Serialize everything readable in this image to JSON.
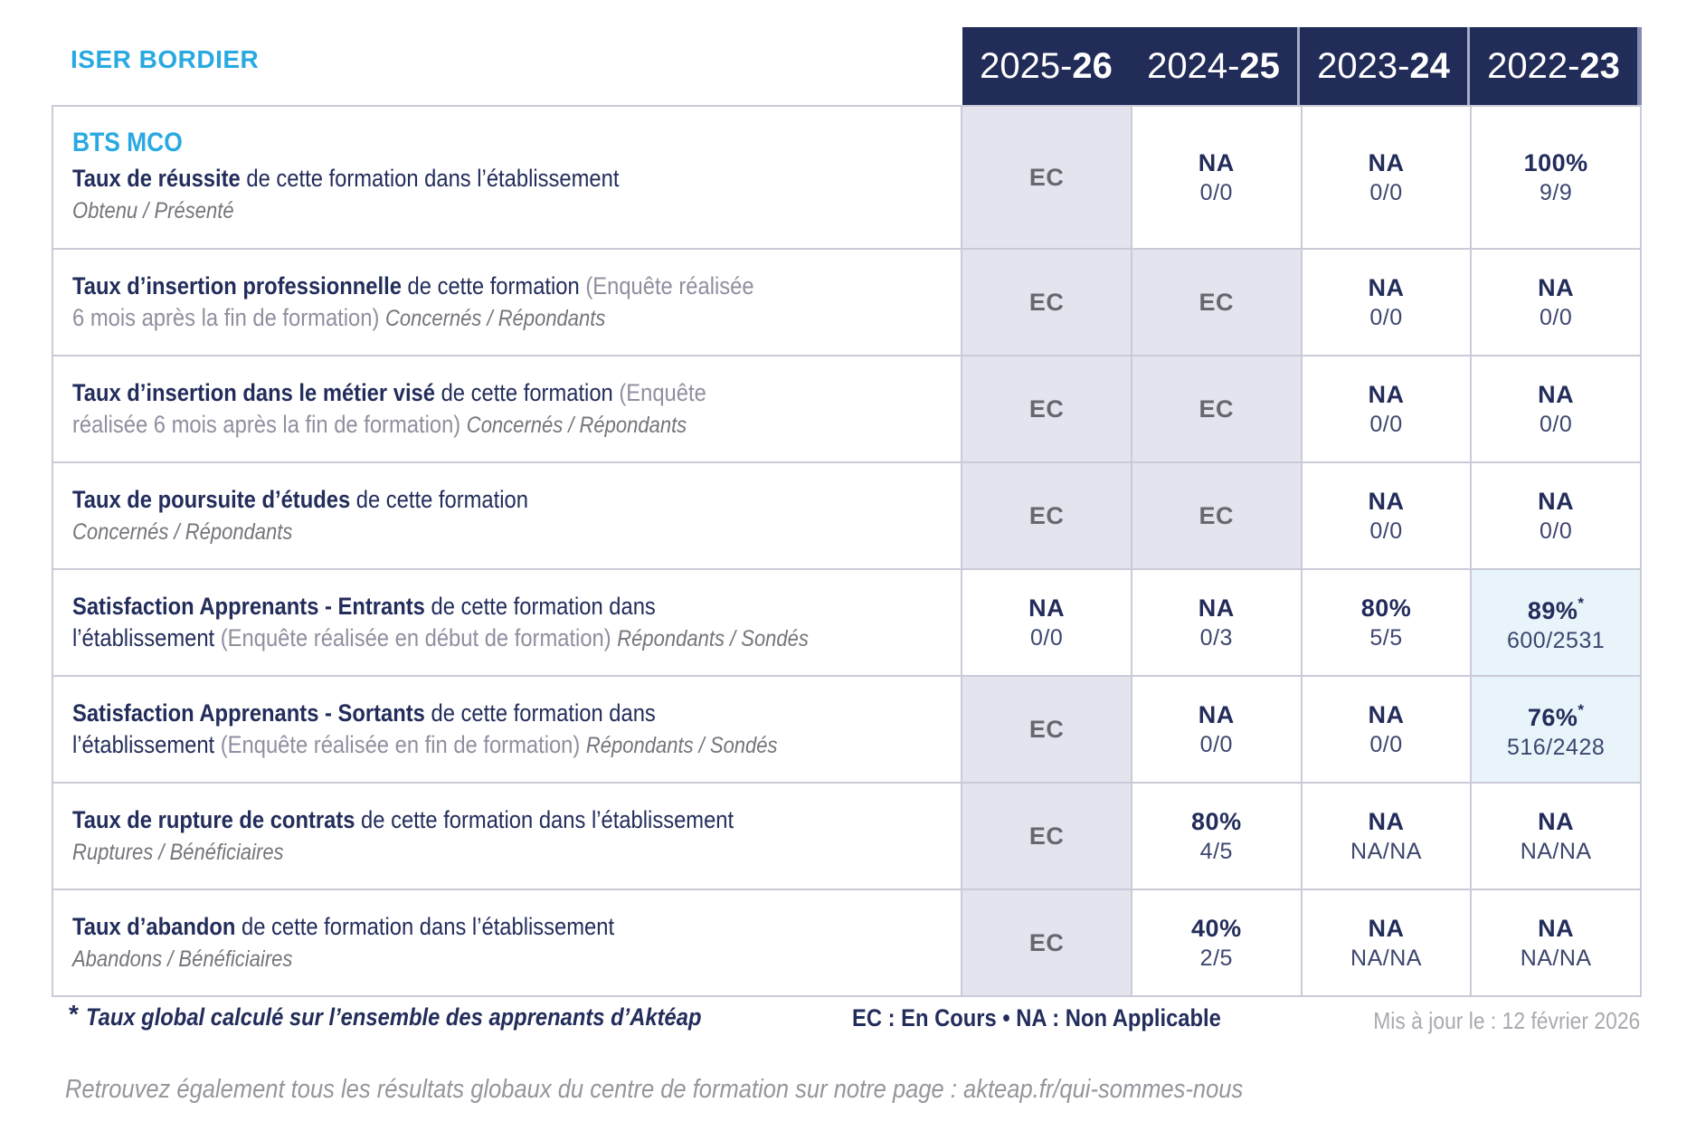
{
  "brand": "ISER BORDIER",
  "header": {
    "years": [
      {
        "pre": "2025-",
        "bold": "26"
      },
      {
        "pre": "2024-",
        "bold": "25"
      },
      {
        "pre": "2023-",
        "bold": "24"
      },
      {
        "pre": "2022-",
        "bold": "23"
      }
    ]
  },
  "table": {
    "rows": [
      {
        "name": "taux-de-reussite",
        "program_title": "BTS MCO",
        "label_lines": [
          [
            {
              "t": "Taux de réussite ",
              "s": "b"
            },
            {
              "t": "de cette formation dans l’établissement",
              "s": "n"
            }
          ],
          [
            {
              "t": "Obtenu / Présenté",
              "s": "i"
            }
          ]
        ],
        "values": [
          {
            "kind": "ec",
            "value": "EC"
          },
          {
            "kind": "plain",
            "value": "NA",
            "sub": "0/0"
          },
          {
            "kind": "plain",
            "value": "NA",
            "sub": "0/0"
          },
          {
            "kind": "plain",
            "value": "100%",
            "sub": "9/9"
          }
        ]
      },
      {
        "name": "taux-insertion-professionnelle",
        "label_lines": [
          [
            {
              "t": "Taux d’insertion professionnelle ",
              "s": "b"
            },
            {
              "t": "de cette formation ",
              "s": "n"
            },
            {
              "t": "(Enquête réalisée",
              "s": "p"
            }
          ],
          [
            {
              "t": "6 mois après la fin de formation) ",
              "s": "p"
            },
            {
              "t": "Concernés / Répondants",
              "s": "i"
            }
          ]
        ],
        "values": [
          {
            "kind": "ec",
            "value": "EC"
          },
          {
            "kind": "ec",
            "value": "EC"
          },
          {
            "kind": "plain",
            "value": "NA",
            "sub": "0/0"
          },
          {
            "kind": "plain",
            "value": "NA",
            "sub": "0/0"
          }
        ]
      },
      {
        "name": "taux-insertion-metier-vise",
        "label_lines": [
          [
            {
              "t": "Taux d’insertion dans le métier visé ",
              "s": "b"
            },
            {
              "t": "de cette formation ",
              "s": "n"
            },
            {
              "t": "(Enquête",
              "s": "p"
            }
          ],
          [
            {
              "t": "réalisée 6 mois après la fin de formation) ",
              "s": "p"
            },
            {
              "t": "Concernés / Répondants",
              "s": "i"
            }
          ]
        ],
        "values": [
          {
            "kind": "ec",
            "value": "EC"
          },
          {
            "kind": "ec",
            "value": "EC"
          },
          {
            "kind": "plain",
            "value": "NA",
            "sub": "0/0"
          },
          {
            "kind": "plain",
            "value": "NA",
            "sub": "0/0"
          }
        ]
      },
      {
        "name": "taux-poursuite-etudes",
        "label_lines": [
          [
            {
              "t": "Taux de poursuite d’études ",
              "s": "b"
            },
            {
              "t": "de cette formation",
              "s": "n"
            }
          ],
          [
            {
              "t": "Concernés / Répondants",
              "s": "i"
            }
          ]
        ],
        "values": [
          {
            "kind": "ec",
            "value": "EC"
          },
          {
            "kind": "ec",
            "value": "EC"
          },
          {
            "kind": "plain",
            "value": "NA",
            "sub": "0/0"
          },
          {
            "kind": "plain",
            "value": "NA",
            "sub": "0/0"
          }
        ]
      },
      {
        "name": "satisfaction-apprenants-entrants",
        "label_lines": [
          [
            {
              "t": "Satisfaction Apprenants - Entrants ",
              "s": "b"
            },
            {
              "t": "de cette formation dans",
              "s": "n"
            }
          ],
          [
            {
              "t": "l’établissement ",
              "s": "n"
            },
            {
              "t": "(Enquête réalisée en début de formation) ",
              "s": "p"
            },
            {
              "t": "Répondants / Sondés",
              "s": "i"
            }
          ]
        ],
        "values": [
          {
            "kind": "plain",
            "value": "NA",
            "sub": "0/0"
          },
          {
            "kind": "plain",
            "value": "NA",
            "sub": "0/3"
          },
          {
            "kind": "plain",
            "value": "80%",
            "sub": "5/5"
          },
          {
            "kind": "hl",
            "value": "89%",
            "mark": "*",
            "sub": "600/2531"
          }
        ]
      },
      {
        "name": "satisfaction-apprenants-sortants",
        "label_lines": [
          [
            {
              "t": "Satisfaction Apprenants - Sortants ",
              "s": "b"
            },
            {
              "t": "de cette formation dans",
              "s": "n"
            }
          ],
          [
            {
              "t": "l’établissement ",
              "s": "n"
            },
            {
              "t": "(Enquête réalisée en fin de formation) ",
              "s": "p"
            },
            {
              "t": "Répondants / Sondés",
              "s": "i"
            }
          ]
        ],
        "values": [
          {
            "kind": "ec",
            "value": "EC"
          },
          {
            "kind": "plain",
            "value": "NA",
            "sub": "0/0"
          },
          {
            "kind": "plain",
            "value": "NA",
            "sub": "0/0"
          },
          {
            "kind": "hl",
            "value": "76%",
            "mark": "*",
            "sub": "516/2428"
          }
        ]
      },
      {
        "name": "taux-rupture-contrats",
        "label_lines": [
          [
            {
              "t": "Taux de rupture de contrats ",
              "s": "b"
            },
            {
              "t": "de cette formation dans l’établissement",
              "s": "n"
            }
          ],
          [
            {
              "t": "Ruptures / Bénéficiaires",
              "s": "i"
            }
          ]
        ],
        "values": [
          {
            "kind": "ec",
            "value": "EC"
          },
          {
            "kind": "plain",
            "value": "80%",
            "sub": "4/5"
          },
          {
            "kind": "plain",
            "value": "NA",
            "sub": "NA/NA"
          },
          {
            "kind": "plain",
            "value": "NA",
            "sub": "NA/NA"
          }
        ]
      },
      {
        "name": "taux-abandon",
        "label_lines": [
          [
            {
              "t": "Taux d’abandon ",
              "s": "b"
            },
            {
              "t": "de cette formation dans l’établissement",
              "s": "n"
            }
          ],
          [
            {
              "t": "Abandons / Bénéficiaires",
              "s": "i"
            }
          ]
        ],
        "values": [
          {
            "kind": "ec",
            "value": "EC"
          },
          {
            "kind": "plain",
            "value": "40%",
            "sub": "2/5"
          },
          {
            "kind": "plain",
            "value": "NA",
            "sub": "NA/NA"
          },
          {
            "kind": "plain",
            "value": "NA",
            "sub": "NA/NA"
          }
        ]
      }
    ]
  },
  "footer": {
    "asterisk": "*",
    "note": "Taux global calculé sur l’ensemble des apprenants d’Aktéap",
    "legend": "EC : En Cours   •   NA : Non Applicable",
    "updated": "Mis à jour le : 12 février 2026"
  },
  "bottom_note": "Retrouvez également tous les résultats globaux du centre de formation sur notre page : akteap.fr/qui-sommes-nous",
  "colors": {
    "header_navy": "#222c58",
    "text_navy": "#232d5b",
    "brand_blue": "#29a9e1",
    "ec_cell_bg": "#e4e4ee",
    "highlight_cell_bg": "#e9f3fa",
    "border": "#cacbd8",
    "ec_text": "#67676f",
    "secondary_gray": "#8f8fa0",
    "italic_gray": "#74747c",
    "updated_gray": "#a9a9b1",
    "bottom_gray": "#95959d"
  }
}
